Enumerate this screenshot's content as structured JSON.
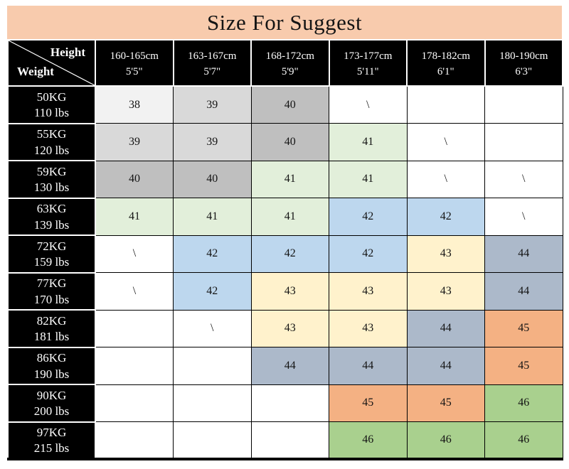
{
  "title": "Size For Suggest",
  "corner": {
    "top_label": "Height",
    "bottom_label": "Weight"
  },
  "columns": [
    {
      "cm": "160-165cm",
      "ft": "5'5\""
    },
    {
      "cm": "163-167cm",
      "ft": "5'7\""
    },
    {
      "cm": "168-172cm",
      "ft": "5'9\""
    },
    {
      "cm": "173-177cm",
      "ft": "5'11\""
    },
    {
      "cm": "178-182cm",
      "ft": "6'1\""
    },
    {
      "cm": "180-190cm",
      "ft": "6'3\""
    }
  ],
  "rows": [
    {
      "kg": "50KG",
      "lbs": "110 lbs",
      "cells": [
        {
          "v": "38",
          "bg": "#F2F2F2"
        },
        {
          "v": "39",
          "bg": "#D9D9D9"
        },
        {
          "v": "40",
          "bg": "#BFBFBF"
        },
        {
          "v": "\\",
          "bg": "#FFFFFF"
        },
        {
          "v": "",
          "bg": "#FFFFFF"
        },
        {
          "v": "",
          "bg": "#FFFFFF"
        }
      ]
    },
    {
      "kg": "55KG",
      "lbs": "120 lbs",
      "cells": [
        {
          "v": "39",
          "bg": "#D9D9D9"
        },
        {
          "v": "39",
          "bg": "#D9D9D9"
        },
        {
          "v": "40",
          "bg": "#BFBFBF"
        },
        {
          "v": "41",
          "bg": "#E2EFDA"
        },
        {
          "v": "\\",
          "bg": "#FFFFFF"
        },
        {
          "v": "",
          "bg": "#FFFFFF"
        }
      ]
    },
    {
      "kg": "59KG",
      "lbs": "130 lbs",
      "cells": [
        {
          "v": "40",
          "bg": "#BFBFBF"
        },
        {
          "v": "40",
          "bg": "#BFBFBF"
        },
        {
          "v": "41",
          "bg": "#E2EFDA"
        },
        {
          "v": "41",
          "bg": "#E2EFDA"
        },
        {
          "v": "\\",
          "bg": "#FFFFFF"
        },
        {
          "v": "\\",
          "bg": "#FFFFFF"
        }
      ]
    },
    {
      "kg": "63KG",
      "lbs": "139 lbs",
      "cells": [
        {
          "v": "41",
          "bg": "#E2EFDA"
        },
        {
          "v": "41",
          "bg": "#E2EFDA"
        },
        {
          "v": "41",
          "bg": "#E2EFDA"
        },
        {
          "v": "42",
          "bg": "#BDD7EE"
        },
        {
          "v": "42",
          "bg": "#BDD7EE"
        },
        {
          "v": "\\",
          "bg": "#FFFFFF"
        }
      ]
    },
    {
      "kg": "72KG",
      "lbs": "159 lbs",
      "cells": [
        {
          "v": "\\",
          "bg": "#FFFFFF"
        },
        {
          "v": "42",
          "bg": "#BDD7EE"
        },
        {
          "v": "42",
          "bg": "#BDD7EE"
        },
        {
          "v": "42",
          "bg": "#BDD7EE"
        },
        {
          "v": "43",
          "bg": "#FFF2CC"
        },
        {
          "v": "44",
          "bg": "#ACB9CA"
        }
      ]
    },
    {
      "kg": "77KG",
      "lbs": "170 lbs",
      "cells": [
        {
          "v": "\\",
          "bg": "#FFFFFF"
        },
        {
          "v": "42",
          "bg": "#BDD7EE"
        },
        {
          "v": "43",
          "bg": "#FFF2CC"
        },
        {
          "v": "43",
          "bg": "#FFF2CC"
        },
        {
          "v": "43",
          "bg": "#FFF2CC"
        },
        {
          "v": "44",
          "bg": "#ACB9CA"
        }
      ]
    },
    {
      "kg": "82KG",
      "lbs": "181 lbs",
      "cells": [
        {
          "v": "",
          "bg": "#FFFFFF"
        },
        {
          "v": "\\",
          "bg": "#FFFFFF"
        },
        {
          "v": "43",
          "bg": "#FFF2CC"
        },
        {
          "v": "43",
          "bg": "#FFF2CC"
        },
        {
          "v": "44",
          "bg": "#ACB9CA"
        },
        {
          "v": "45",
          "bg": "#F4B183"
        }
      ]
    },
    {
      "kg": "86KG",
      "lbs": "190 lbs",
      "cells": [
        {
          "v": "",
          "bg": "#FFFFFF"
        },
        {
          "v": "",
          "bg": "#FFFFFF"
        },
        {
          "v": "44",
          "bg": "#ACB9CA"
        },
        {
          "v": "44",
          "bg": "#ACB9CA"
        },
        {
          "v": "44",
          "bg": "#ACB9CA"
        },
        {
          "v": "45",
          "bg": "#F4B183"
        }
      ]
    },
    {
      "kg": "90KG",
      "lbs": "200 lbs",
      "cells": [
        {
          "v": "",
          "bg": "#FFFFFF"
        },
        {
          "v": "",
          "bg": "#FFFFFF"
        },
        {
          "v": "",
          "bg": "#FFFFFF"
        },
        {
          "v": "45",
          "bg": "#F4B183"
        },
        {
          "v": "45",
          "bg": "#F4B183"
        },
        {
          "v": "46",
          "bg": "#A9D08E"
        }
      ]
    },
    {
      "kg": "97KG",
      "lbs": "215 lbs",
      "cells": [
        {
          "v": "",
          "bg": "#FFFFFF"
        },
        {
          "v": "",
          "bg": "#FFFFFF"
        },
        {
          "v": "",
          "bg": "#FFFFFF"
        },
        {
          "v": "46",
          "bg": "#A9D08E"
        },
        {
          "v": "46",
          "bg": "#A9D08E"
        },
        {
          "v": "46",
          "bg": "#A9D08E"
        }
      ]
    }
  ],
  "colors": {
    "title_bg": "#F8CBAD",
    "header_bg": "#000000",
    "header_text": "#FFFFFF",
    "grid_line": "#000000",
    "cell_38": "#F2F2F2",
    "cell_39": "#D9D9D9",
    "cell_40": "#BFBFBF",
    "cell_41": "#E2EFDA",
    "cell_42": "#BDD7EE",
    "cell_43": "#FFF2CC",
    "cell_44": "#ACB9CA",
    "cell_45": "#F4B183",
    "cell_46": "#A9D08E"
  },
  "chart_data": {
    "type": "table",
    "title": "Size For Suggest",
    "corner_labels": [
      "Height",
      "Weight"
    ],
    "column_headers": [
      "160-165cm 5'5\"",
      "163-167cm 5'7\"",
      "168-172cm 5'9\"",
      "173-177cm 5'11\"",
      "178-182cm 6'1\"",
      "180-190cm 6'3\""
    ],
    "row_headers": [
      "50KG 110 lbs",
      "55KG 120 lbs",
      "59KG 130 lbs",
      "63KG 139 lbs",
      "72KG 159 lbs",
      "77KG 170 lbs",
      "82KG 181 lbs",
      "86KG 190 lbs",
      "90KG 200 lbs",
      "97KG 215 lbs"
    ],
    "values": [
      [
        "38",
        "39",
        "40",
        "\\",
        "",
        ""
      ],
      [
        "39",
        "39",
        "40",
        "41",
        "\\",
        ""
      ],
      [
        "40",
        "40",
        "41",
        "41",
        "\\",
        "\\"
      ],
      [
        "41",
        "41",
        "41",
        "42",
        "42",
        "\\"
      ],
      [
        "\\",
        "42",
        "42",
        "42",
        "43",
        "44"
      ],
      [
        "\\",
        "42",
        "43",
        "43",
        "43",
        "44"
      ],
      [
        "",
        "\\",
        "43",
        "43",
        "44",
        "45"
      ],
      [
        "",
        "",
        "44",
        "44",
        "44",
        "45"
      ],
      [
        "",
        "",
        "",
        "45",
        "45",
        "46"
      ],
      [
        "",
        "",
        "",
        "46",
        "46",
        "46"
      ]
    ]
  }
}
